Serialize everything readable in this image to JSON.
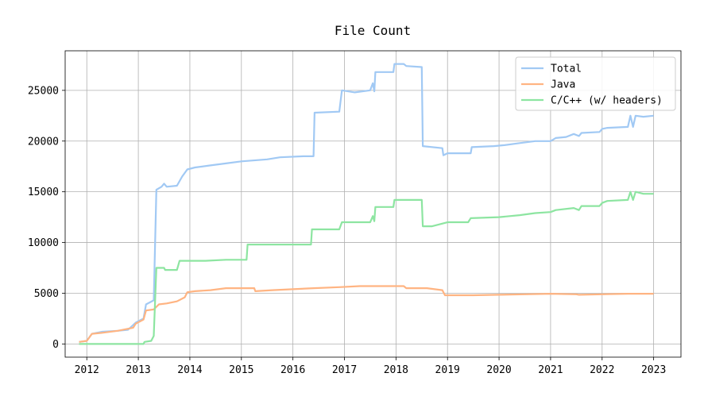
{
  "chart_data": {
    "type": "line",
    "title": "File Count",
    "xlabel": "",
    "ylabel": "",
    "xlim": [
      2011.58,
      2023.53
    ],
    "ylim": [
      -1300,
      28900
    ],
    "x_ticks": [
      2012,
      2013,
      2014,
      2015,
      2016,
      2017,
      2018,
      2019,
      2020,
      2021,
      2022,
      2023
    ],
    "x_tick_labels": [
      "2012",
      "2013",
      "2014",
      "2015",
      "2016",
      "2017",
      "2018",
      "2019",
      "2020",
      "2021",
      "2022",
      "2023"
    ],
    "y_ticks": [
      0,
      5000,
      10000,
      15000,
      20000,
      25000
    ],
    "y_tick_labels": [
      "0",
      "5000",
      "10000",
      "15000",
      "20000",
      "25000"
    ],
    "grid": true,
    "legend_position": "top-right",
    "series": [
      {
        "name": "Total",
        "color": "#a1c9f4",
        "points": [
          [
            2011.85,
            200
          ],
          [
            2012.0,
            300
          ],
          [
            2012.1,
            1000
          ],
          [
            2012.3,
            1200
          ],
          [
            2012.6,
            1300
          ],
          [
            2012.8,
            1400
          ],
          [
            2012.95,
            2100
          ],
          [
            2013.1,
            2500
          ],
          [
            2013.15,
            3900
          ],
          [
            2013.3,
            4300
          ],
          [
            2013.35,
            15200
          ],
          [
            2013.45,
            15500
          ],
          [
            2013.5,
            15800
          ],
          [
            2013.55,
            15500
          ],
          [
            2013.75,
            15600
          ],
          [
            2013.85,
            16500
          ],
          [
            2013.95,
            17200
          ],
          [
            2014.1,
            17400
          ],
          [
            2014.4,
            17600
          ],
          [
            2014.7,
            17800
          ],
          [
            2015.0,
            18000
          ],
          [
            2015.5,
            18200
          ],
          [
            2015.75,
            18400
          ],
          [
            2016.2,
            18500
          ],
          [
            2016.4,
            18500
          ],
          [
            2016.42,
            22800
          ],
          [
            2016.9,
            22900
          ],
          [
            2016.95,
            25000
          ],
          [
            2017.2,
            24800
          ],
          [
            2017.5,
            25000
          ],
          [
            2017.55,
            25700
          ],
          [
            2017.58,
            24900
          ],
          [
            2017.6,
            26800
          ],
          [
            2017.95,
            26800
          ],
          [
            2017.97,
            27600
          ],
          [
            2018.15,
            27600
          ],
          [
            2018.2,
            27400
          ],
          [
            2018.5,
            27300
          ],
          [
            2018.52,
            19500
          ],
          [
            2018.9,
            19300
          ],
          [
            2018.92,
            18600
          ],
          [
            2019.0,
            18800
          ],
          [
            2019.45,
            18800
          ],
          [
            2019.47,
            19400
          ],
          [
            2019.9,
            19500
          ],
          [
            2020.1,
            19600
          ],
          [
            2020.4,
            19800
          ],
          [
            2020.7,
            20000
          ],
          [
            2021.0,
            20000
          ],
          [
            2021.1,
            20300
          ],
          [
            2021.3,
            20400
          ],
          [
            2021.45,
            20700
          ],
          [
            2021.55,
            20500
          ],
          [
            2021.6,
            20800
          ],
          [
            2021.95,
            20900
          ],
          [
            2022.0,
            21200
          ],
          [
            2022.1,
            21300
          ],
          [
            2022.5,
            21400
          ],
          [
            2022.55,
            22500
          ],
          [
            2022.6,
            21400
          ],
          [
            2022.65,
            22500
          ],
          [
            2022.8,
            22400
          ],
          [
            2023.0,
            22500
          ]
        ]
      },
      {
        "name": "Java",
        "color": "#ffb482",
        "points": [
          [
            2011.85,
            200
          ],
          [
            2012.0,
            300
          ],
          [
            2012.1,
            1000
          ],
          [
            2012.3,
            1100
          ],
          [
            2012.6,
            1300
          ],
          [
            2012.9,
            1600
          ],
          [
            2012.95,
            2000
          ],
          [
            2013.1,
            2400
          ],
          [
            2013.15,
            3300
          ],
          [
            2013.3,
            3400
          ],
          [
            2013.4,
            3900
          ],
          [
            2013.55,
            4000
          ],
          [
            2013.75,
            4200
          ],
          [
            2013.9,
            4600
          ],
          [
            2013.95,
            5100
          ],
          [
            2014.1,
            5200
          ],
          [
            2014.4,
            5300
          ],
          [
            2014.7,
            5500
          ],
          [
            2015.0,
            5500
          ],
          [
            2015.25,
            5500
          ],
          [
            2015.27,
            5200
          ],
          [
            2015.6,
            5300
          ],
          [
            2016.0,
            5400
          ],
          [
            2016.4,
            5500
          ],
          [
            2016.9,
            5600
          ],
          [
            2017.3,
            5700
          ],
          [
            2017.9,
            5700
          ],
          [
            2018.15,
            5700
          ],
          [
            2018.2,
            5500
          ],
          [
            2018.6,
            5500
          ],
          [
            2018.9,
            5300
          ],
          [
            2018.95,
            4800
          ],
          [
            2019.5,
            4800
          ],
          [
            2020.0,
            4850
          ],
          [
            2020.5,
            4900
          ],
          [
            2021.0,
            4950
          ],
          [
            2021.5,
            4900
          ],
          [
            2021.55,
            4850
          ],
          [
            2022.0,
            4900
          ],
          [
            2022.5,
            4950
          ],
          [
            2023.0,
            4950
          ]
        ]
      },
      {
        "name": "C/C++ (w/ headers)",
        "color": "#8de5a1",
        "points": [
          [
            2011.85,
            0
          ],
          [
            2012.2,
            0
          ],
          [
            2012.6,
            0
          ],
          [
            2012.95,
            0
          ],
          [
            2013.1,
            0
          ],
          [
            2013.12,
            200
          ],
          [
            2013.25,
            300
          ],
          [
            2013.3,
            800
          ],
          [
            2013.35,
            7500
          ],
          [
            2013.5,
            7500
          ],
          [
            2013.52,
            7300
          ],
          [
            2013.75,
            7300
          ],
          [
            2013.8,
            8200
          ],
          [
            2014.3,
            8200
          ],
          [
            2014.7,
            8300
          ],
          [
            2015.1,
            8300
          ],
          [
            2015.12,
            9800
          ],
          [
            2015.5,
            9800
          ],
          [
            2016.0,
            9800
          ],
          [
            2016.35,
            9800
          ],
          [
            2016.37,
            11300
          ],
          [
            2016.9,
            11300
          ],
          [
            2016.95,
            12000
          ],
          [
            2017.2,
            12000
          ],
          [
            2017.5,
            12000
          ],
          [
            2017.55,
            12600
          ],
          [
            2017.58,
            12100
          ],
          [
            2017.6,
            13500
          ],
          [
            2017.95,
            13500
          ],
          [
            2017.97,
            14200
          ],
          [
            2018.5,
            14200
          ],
          [
            2018.52,
            11600
          ],
          [
            2018.7,
            11600
          ],
          [
            2018.85,
            11800
          ],
          [
            2019.0,
            12000
          ],
          [
            2019.4,
            12000
          ],
          [
            2019.45,
            12400
          ],
          [
            2020.0,
            12500
          ],
          [
            2020.4,
            12700
          ],
          [
            2020.7,
            12900
          ],
          [
            2021.0,
            13000
          ],
          [
            2021.1,
            13200
          ],
          [
            2021.45,
            13400
          ],
          [
            2021.55,
            13200
          ],
          [
            2021.6,
            13600
          ],
          [
            2021.95,
            13600
          ],
          [
            2022.0,
            13900
          ],
          [
            2022.1,
            14100
          ],
          [
            2022.5,
            14200
          ],
          [
            2022.55,
            15000
          ],
          [
            2022.6,
            14200
          ],
          [
            2022.65,
            15000
          ],
          [
            2022.8,
            14800
          ],
          [
            2023.0,
            14800
          ]
        ]
      }
    ]
  }
}
